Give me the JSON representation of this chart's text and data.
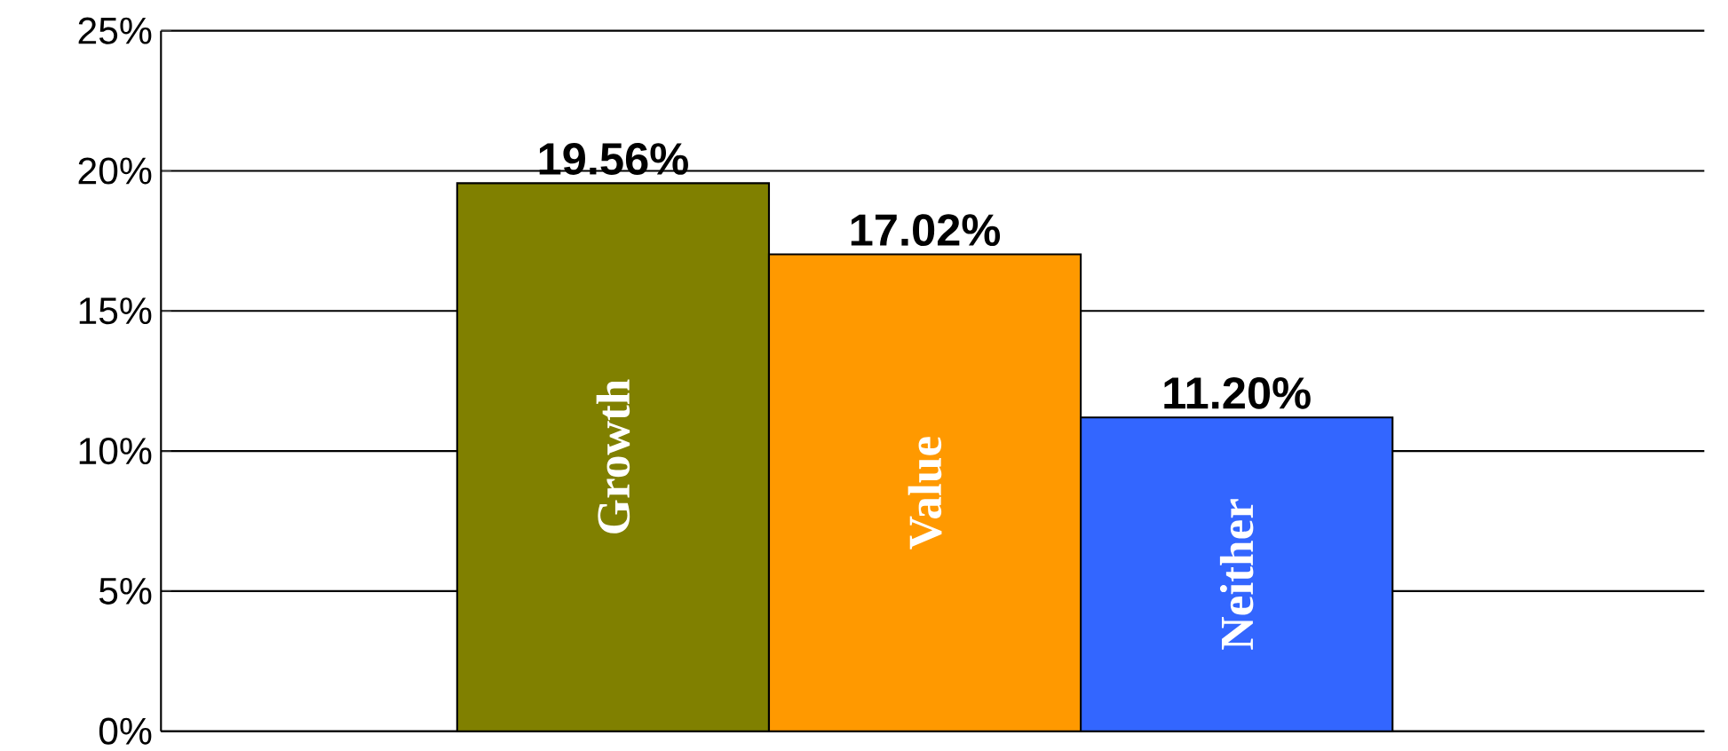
{
  "chart_data": {
    "type": "bar",
    "categories": [
      "Growth",
      "Value",
      "Neither"
    ],
    "values": [
      19.56,
      17.02,
      11.2
    ],
    "colors": [
      "#808000",
      "#ff9900",
      "#3366ff"
    ],
    "value_labels": [
      "19.56%",
      "17.02%",
      "11.20%"
    ],
    "ylim": [
      0,
      25
    ],
    "yticks": [
      {
        "value": 0,
        "label": "0%"
      },
      {
        "value": 5,
        "label": "5%"
      },
      {
        "value": 10,
        "label": "10%"
      },
      {
        "value": 15,
        "label": "15%"
      },
      {
        "value": 20,
        "label": "20%"
      },
      {
        "value": 25,
        "label": "25%"
      }
    ],
    "grid": "y"
  }
}
